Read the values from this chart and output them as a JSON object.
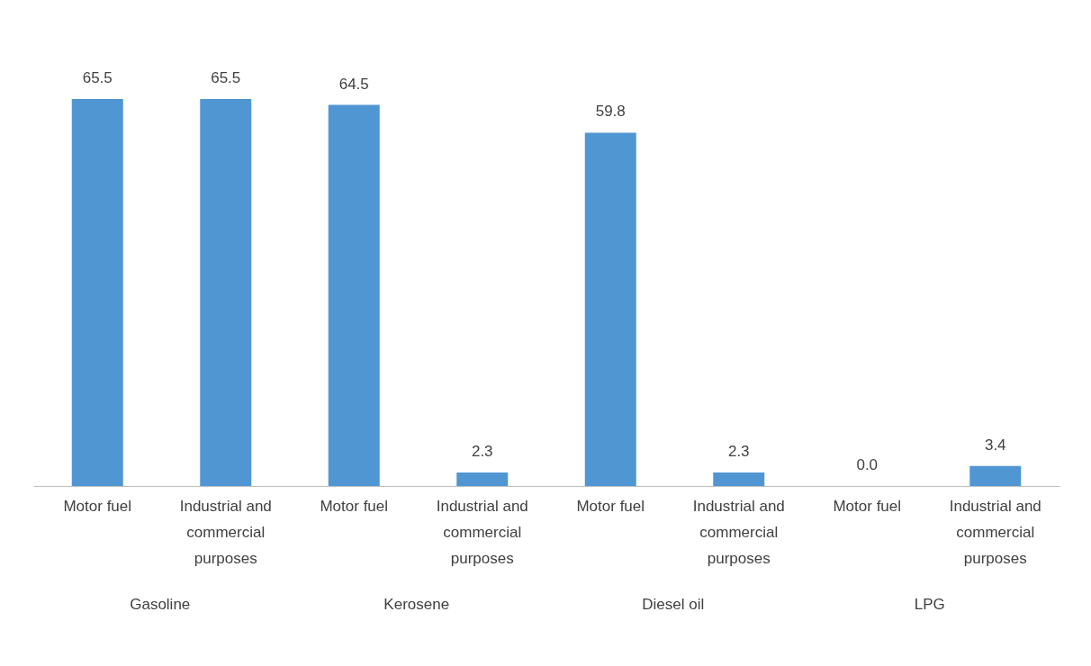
{
  "chart_data": {
    "type": "bar",
    "categories": [
      "Motor fuel",
      "Industrial and commercial purposes",
      "Motor fuel",
      "Industrial and commercial purposes",
      "Motor fuel",
      "Industrial and commercial purposes",
      "Motor fuel",
      "Industrial and commercial purposes"
    ],
    "values": [
      65.5,
      65.5,
      64.5,
      2.3,
      59.8,
      2.3,
      0.0,
      3.4
    ],
    "color": "#5096d3",
    "value_labels": [
      "65.5",
      "65.5",
      "64.5",
      "2.3",
      "59.8",
      "2.3",
      "0.0",
      "3.4"
    ],
    "annotations": [
      "Gasoline",
      "Kerosene",
      "Diesel oil",
      "LPG"
    ],
    "grid": false
  }
}
